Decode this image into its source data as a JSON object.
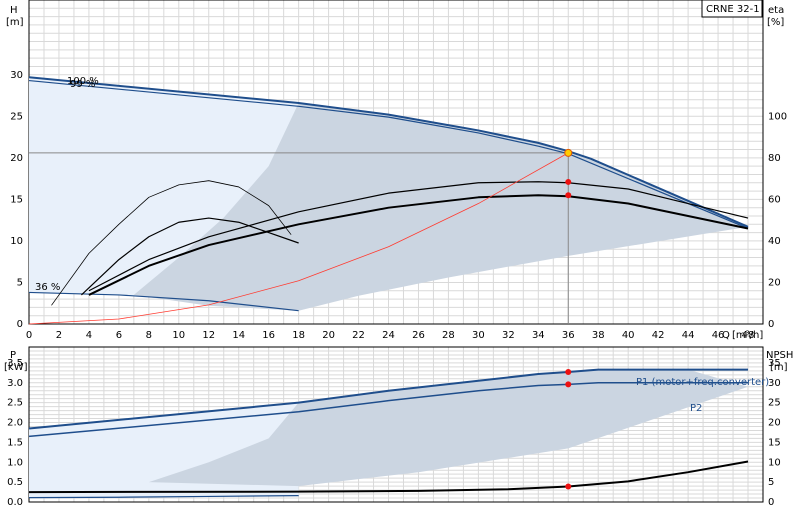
{
  "chart_data": [
    {
      "type": "line",
      "title": "CRNE 32-1",
      "left_axis": {
        "name": "H",
        "unit": "[m]",
        "ticks": [
          0,
          5,
          10,
          15,
          20,
          25,
          30
        ],
        "lim": [
          0,
          39
        ]
      },
      "right_axis": {
        "name": "eta",
        "unit": "[%]",
        "ticks": [
          0,
          20,
          40,
          60,
          80,
          100
        ],
        "lim": [
          0,
          156
        ]
      },
      "x_axis": {
        "name": "Q",
        "unit": "[m³/h]",
        "ticks": [
          0,
          2,
          4,
          6,
          8,
          10,
          12,
          14,
          16,
          18,
          20,
          22,
          24,
          26,
          28,
          30,
          32,
          34,
          36,
          38,
          40,
          42,
          44,
          46,
          48
        ],
        "lim": [
          0,
          49
        ]
      },
      "grid": true,
      "annotations": {
        "speed_100": "100 %",
        "speed_99": "99 %",
        "speed_36": "36 %"
      },
      "duty_point": {
        "q": 36,
        "h": 20.6
      },
      "series": [
        {
          "key": "h_100",
          "x": [
            0,
            18,
            24,
            30,
            34,
            36,
            37.5,
            48
          ],
          "y": [
            29.7,
            26.6,
            25.2,
            23.3,
            21.8,
            20.8,
            19.9,
            11.7
          ]
        },
        {
          "key": "h_99",
          "x": [
            0,
            18,
            24,
            30,
            34,
            36,
            48
          ],
          "y": [
            29.3,
            26.2,
            24.9,
            23.0,
            21.4,
            20.5,
            11.5
          ]
        },
        {
          "key": "h_36",
          "x": [
            0,
            6,
            12,
            18
          ],
          "y": [
            3.8,
            3.5,
            2.8,
            1.6
          ]
        },
        {
          "key": "eta_main",
          "x": [
            4,
            8,
            12,
            18,
            24,
            30,
            34,
            36,
            40,
            44,
            48
          ],
          "y": [
            14,
            28,
            38,
            48,
            56,
            61,
            62,
            61.5,
            58,
            52,
            46
          ]
        },
        {
          "key": "eta_outer",
          "x": [
            4,
            8,
            12,
            18,
            24,
            30,
            34,
            36,
            40,
            44,
            48
          ],
          "y": [
            16,
            31,
            42,
            54,
            63,
            68,
            68.5,
            68,
            65,
            58,
            51
          ]
        },
        {
          "key": "eta_36a",
          "x": [
            1.5,
            4,
            6,
            8,
            10,
            12,
            14,
            16,
            17.5
          ],
          "y": [
            9,
            34,
            48,
            61,
            67,
            69,
            66,
            57,
            43
          ]
        },
        {
          "key": "eta_36b",
          "x": [
            3.5,
            6,
            8,
            10,
            12,
            14,
            16,
            18
          ],
          "y": [
            14,
            31,
            42,
            49,
            51,
            49,
            44,
            39
          ]
        },
        {
          "key": "system_curve",
          "x": [
            0,
            6,
            12,
            18,
            24,
            30,
            36
          ],
          "y": [
            0,
            0.6,
            2.3,
            5.2,
            9.3,
            14.5,
            20.6
          ]
        }
      ],
      "markers": [
        {
          "x": 36,
          "y": 17.1
        },
        {
          "x": 36,
          "y": 15.5
        }
      ]
    },
    {
      "type": "line",
      "left_axis": {
        "name": "P",
        "unit": "[kW]",
        "ticks": [
          0.0,
          0.5,
          1.0,
          1.5,
          2.0,
          2.5,
          3.0,
          3.5
        ],
        "lim": [
          0,
          3.9
        ]
      },
      "right_axis": {
        "name": "NPSH",
        "unit": "[m]",
        "ticks": [
          0,
          5,
          10,
          15,
          20,
          25,
          30,
          35
        ],
        "lim": [
          0,
          39
        ]
      },
      "x_axis": {
        "lim": [
          0,
          49
        ]
      },
      "grid": true,
      "series": [
        {
          "key": "p1",
          "name": "P1 (motor+freq.converter)",
          "x": [
            0,
            18,
            24,
            30,
            34,
            36,
            38,
            48
          ],
          "y": [
            1.85,
            2.5,
            2.8,
            3.05,
            3.22,
            3.27,
            3.33,
            3.33
          ]
        },
        {
          "key": "p2",
          "name": "P2",
          "x": [
            0,
            18,
            24,
            30,
            34,
            36,
            38,
            48
          ],
          "y": [
            1.65,
            2.27,
            2.55,
            2.8,
            2.93,
            2.96,
            3.0,
            3.0
          ]
        },
        {
          "key": "p_low",
          "x": [
            0,
            6,
            12,
            18
          ],
          "y": [
            0.11,
            0.12,
            0.14,
            0.16
          ]
        },
        {
          "key": "npsh",
          "x": [
            0,
            18,
            26,
            32,
            36,
            40,
            44,
            48
          ],
          "y": [
            2.5,
            2.6,
            2.8,
            3.2,
            3.9,
            5.2,
            7.5,
            10.2
          ]
        }
      ],
      "markers": [
        {
          "x": 36,
          "y": 3.27
        },
        {
          "x": 36,
          "y": 2.96
        },
        {
          "x": 36,
          "y": 0.39
        }
      ]
    }
  ],
  "colors": {
    "curve_blue": "#1f4e8c",
    "area_light": "#e8f0fa",
    "area_dark": "#cbd5e1",
    "system_red": "#ff3b30",
    "marker_red": "#ee1111",
    "duty_yellow": "#ffcc00"
  }
}
